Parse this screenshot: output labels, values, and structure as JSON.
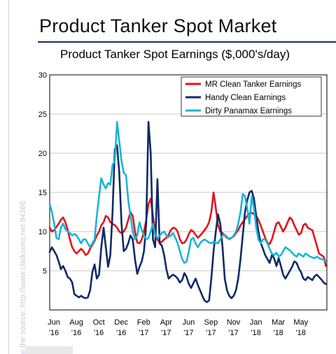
{
  "slide_title": "Product Tanker Spot Market",
  "watermark": "e the source: http://www.clarksons.net 94386",
  "chart_data": {
    "type": "line",
    "title": "Product Tanker Spot Earnings ($,000's/day)",
    "xlabel": "",
    "ylabel": "",
    "ylim": [
      0,
      30
    ],
    "yticks": [
      "30",
      "25",
      "20",
      "15",
      "10",
      "5"
    ],
    "ytick_values": [
      30,
      25,
      20,
      15,
      10,
      5
    ],
    "xlim": [
      0,
      24.7
    ],
    "xticks": [
      {
        "month": "Jun",
        "year": "'16",
        "pos": 0
      },
      {
        "month": "Aug",
        "year": "'16",
        "pos": 2
      },
      {
        "month": "Oct",
        "year": "'16",
        "pos": 4
      },
      {
        "month": "Dec",
        "year": "'16",
        "pos": 6
      },
      {
        "month": "Feb",
        "year": "'17",
        "pos": 8
      },
      {
        "month": "Apr",
        "year": "'17",
        "pos": 10
      },
      {
        "month": "Jun",
        "year": "'17",
        "pos": 12
      },
      {
        "month": "Sep",
        "year": "'17",
        "pos": 14
      },
      {
        "month": "Nov",
        "year": "'17",
        "pos": 16
      },
      {
        "month": "Jan",
        "year": "'18",
        "pos": 18
      },
      {
        "month": "Mar",
        "year": "'18",
        "pos": 20
      },
      {
        "month": "May",
        "year": "'18",
        "pos": 22
      }
    ],
    "grid": true,
    "legend_position": "top-right",
    "series": [
      {
        "name": "MR Clean Tanker Earnings",
        "color": "#e3131b",
        "x": [
          0,
          0.2,
          0.4,
          0.6,
          0.8,
          1.0,
          1.2,
          1.4,
          1.6,
          1.8,
          2.0,
          2.2,
          2.4,
          2.6,
          2.8,
          3.0,
          3.2,
          3.4,
          3.6,
          3.8,
          4.0,
          4.2,
          4.4,
          4.6,
          4.8,
          5.0,
          5.2,
          5.4,
          5.6,
          5.8,
          6.0,
          6.2,
          6.4,
          6.6,
          6.8,
          7.0,
          7.2,
          7.4,
          7.6,
          7.8,
          8.0,
          8.2,
          8.4,
          8.6,
          8.8,
          9.0,
          9.2,
          9.4,
          9.6,
          9.8,
          10.0,
          10.2,
          10.4,
          10.6,
          10.8,
          11.0,
          11.2,
          11.4,
          11.6,
          11.8,
          12.0,
          12.2,
          12.4,
          12.6,
          12.8,
          13.0,
          13.2,
          13.4,
          13.6,
          13.8,
          14.0,
          14.2,
          14.4,
          14.6,
          14.8,
          15.0,
          15.2,
          15.4,
          15.6,
          15.8,
          16.0,
          16.2,
          16.4,
          16.6,
          16.8,
          17.0,
          17.2,
          17.4,
          17.6,
          17.8,
          18.0,
          18.2,
          18.4,
          18.6,
          18.8,
          19.0,
          19.2,
          19.4,
          19.6,
          19.8,
          20.0,
          20.2,
          20.4,
          20.6,
          20.8,
          21.0,
          21.2,
          21.4,
          21.6,
          21.8,
          22.0,
          22.2,
          22.4,
          22.6,
          22.8,
          23.0,
          23.2,
          23.4,
          23.6,
          23.8,
          24.0,
          24.2,
          24.4
        ],
        "values": [
          10.5,
          10.0,
          10.2,
          10.6,
          11.0,
          11.5,
          11.8,
          11.2,
          10.2,
          9.0,
          8.0,
          7.5,
          7.2,
          7.5,
          7.8,
          7.5,
          7.0,
          7.2,
          7.8,
          8.3,
          8.8,
          9.5,
          10.0,
          10.8,
          11.2,
          12.0,
          11.8,
          11.2,
          11.0,
          10.8,
          10.5,
          10.0,
          9.8,
          10.0,
          10.5,
          11.5,
          12.5,
          12.0,
          10.0,
          8.6,
          8.5,
          9.0,
          10.0,
          11.5,
          13.5,
          14.2,
          12.0,
          9.8,
          9.0,
          8.6,
          8.7,
          9.0,
          9.2,
          9.6,
          10.2,
          10.5,
          10.4,
          10.0,
          9.0,
          8.5,
          8.6,
          9.0,
          9.7,
          10.2,
          10.0,
          9.6,
          9.2,
          9.5,
          9.8,
          10.2,
          10.6,
          11.2,
          12.5,
          15.0,
          13.0,
          10.8,
          10.0,
          9.8,
          9.5,
          9.2,
          9.1,
          9.2,
          9.4,
          9.8,
          10.2,
          10.8,
          11.2,
          11.6,
          12.0,
          12.3,
          12.4,
          12.2,
          12.0,
          11.5,
          10.8,
          10.0,
          9.2,
          8.6,
          8.4,
          9.0,
          10.0,
          11.0,
          11.2,
          10.6,
          10.0,
          10.5,
          11.2,
          11.8,
          11.5,
          10.8,
          10.2,
          9.6,
          9.8,
          10.8,
          11.0,
          10.5,
          10.3,
          10.2,
          9.2,
          8.2,
          7.2,
          7.0,
          6.8
        ],
        "tail": [
          [
            24.5,
            6.4
          ],
          [
            24.6,
            5.6
          ]
        ]
      },
      {
        "name": "Handy Clean Earnings",
        "color": "#0f2a66",
        "x": [
          0,
          0.2,
          0.4,
          0.6,
          0.8,
          1.0,
          1.2,
          1.4,
          1.6,
          1.8,
          2.0,
          2.2,
          2.4,
          2.6,
          2.8,
          3.0,
          3.2,
          3.4,
          3.6,
          3.8,
          4.0,
          4.2,
          4.4,
          4.6,
          4.8,
          5.0,
          5.2,
          5.4,
          5.6,
          5.8,
          6.0,
          6.2,
          6.4,
          6.6,
          6.8,
          7.0,
          7.2,
          7.4,
          7.6,
          7.8,
          8.0,
          8.2,
          8.4,
          8.6,
          8.8,
          9.0,
          9.2,
          9.4,
          9.6,
          9.8,
          10.0,
          10.2,
          10.4,
          10.6,
          10.8,
          11.0,
          11.2,
          11.4,
          11.6,
          11.8,
          12.0,
          12.2,
          12.4,
          12.6,
          12.8,
          13.0,
          13.2,
          13.4,
          13.6,
          13.8,
          14.0,
          14.2,
          14.4,
          14.6,
          14.8,
          15.0,
          15.2,
          15.4,
          15.6,
          15.8,
          16.0,
          16.2,
          16.4,
          16.6,
          16.8,
          17.0,
          17.2,
          17.4,
          17.6,
          17.8,
          18.0,
          18.2,
          18.4,
          18.6,
          18.8,
          19.0,
          19.2,
          19.4,
          19.6,
          19.8,
          20.0,
          20.2,
          20.4,
          20.6,
          20.8,
          21.0,
          21.2,
          21.4,
          21.6,
          21.8,
          22.0,
          22.2,
          22.4,
          22.6,
          22.8,
          23.0,
          23.2,
          23.4,
          23.6,
          23.8,
          24.0,
          24.2,
          24.4,
          24.6
        ],
        "values": [
          7.4,
          8.0,
          7.5,
          7.0,
          6.2,
          5.2,
          5.6,
          5.0,
          4.2,
          4.0,
          3.5,
          2.0,
          1.8,
          1.6,
          1.8,
          1.6,
          1.5,
          1.6,
          2.5,
          4.8,
          5.8,
          4.0,
          4.5,
          8.0,
          10.5,
          8.0,
          5.5,
          7.0,
          12.5,
          20.5,
          21.0,
          17.5,
          11.0,
          7.5,
          7.8,
          8.5,
          9.5,
          9.0,
          6.5,
          4.6,
          5.5,
          6.2,
          7.5,
          11.0,
          24.0,
          20.0,
          9.0,
          8.0,
          16.7,
          8.5,
          8.2,
          7.0,
          5.2,
          4.0,
          4.3,
          4.5,
          4.3,
          4.0,
          3.5,
          3.8,
          4.7,
          4.2,
          3.3,
          2.8,
          3.4,
          4.0,
          3.2,
          2.5,
          1.8,
          1.2,
          1.0,
          1.2,
          4.0,
          7.5,
          10.0,
          12.2,
          11.0,
          8.0,
          4.0,
          2.5,
          1.8,
          1.5,
          1.8,
          2.5,
          4.0,
          6.5,
          9.5,
          12.5,
          14.0,
          15.0,
          15.2,
          14.2,
          12.0,
          10.0,
          8.6,
          7.8,
          7.0,
          6.5,
          6.0,
          7.0,
          6.6,
          5.6,
          6.6,
          5.6,
          4.5,
          4.0,
          4.5,
          5.0,
          5.5,
          6.2,
          6.0,
          5.3,
          4.8,
          4.0,
          3.8,
          4.2,
          4.0,
          3.8,
          4.3,
          4.5,
          4.2,
          3.9,
          3.5,
          3.3
        ]
      },
      {
        "name": "Dirty Panamax Earnings",
        "color": "#1ab4d7",
        "x": [
          0,
          0.2,
          0.4,
          0.6,
          0.8,
          1.0,
          1.2,
          1.4,
          1.6,
          1.8,
          2.0,
          2.2,
          2.4,
          2.6,
          2.8,
          3.0,
          3.2,
          3.4,
          3.6,
          3.8,
          4.0,
          4.2,
          4.4,
          4.6,
          4.8,
          5.0,
          5.2,
          5.4,
          5.6,
          5.8,
          6.0,
          6.2,
          6.4,
          6.6,
          6.8,
          7.0,
          7.2,
          7.4,
          7.6,
          7.8,
          8.0,
          8.2,
          8.4,
          8.6,
          8.8,
          9.0,
          9.2,
          9.4,
          9.6,
          9.8,
          10.0,
          10.2,
          10.4,
          10.6,
          10.8,
          11.0,
          11.2,
          11.4,
          11.6,
          11.8,
          12.0,
          12.2,
          12.4,
          12.6,
          12.8,
          13.0,
          13.2,
          13.4,
          13.6,
          13.8,
          14.0,
          14.2,
          14.4,
          14.6,
          14.8,
          15.0,
          15.2,
          15.4,
          15.6,
          15.8,
          16.0,
          16.2,
          16.4,
          16.6,
          16.8,
          17.0,
          17.2,
          17.4,
          17.6,
          17.8,
          18.0,
          18.2,
          18.4,
          18.6,
          18.8,
          19.0,
          19.2,
          19.4,
          19.6,
          19.8,
          20.0,
          20.2,
          20.4,
          20.6,
          20.8,
          21.0,
          21.2,
          21.4,
          21.6,
          21.8,
          22.0,
          22.2,
          22.4,
          22.6,
          22.8,
          23.0,
          23.2,
          23.4,
          23.6,
          23.8,
          24.0,
          24.2,
          24.4,
          24.6
        ],
        "values": [
          13.5,
          12.5,
          11.0,
          9.2,
          9.0,
          10.5,
          11.0,
          10.3,
          10.0,
          9.8,
          9.5,
          9.7,
          9.5,
          9.0,
          8.5,
          9.0,
          9.0,
          8.5,
          8.0,
          8.5,
          9.0,
          12.0,
          14.5,
          16.8,
          16.0,
          15.5,
          16.2,
          16.0,
          18.5,
          19.0,
          24.0,
          21.5,
          19.0,
          17.5,
          17.2,
          14.0,
          12.0,
          10.0,
          9.0,
          9.5,
          11.2,
          10.2,
          9.5,
          9.0,
          9.2,
          10.0,
          11.0,
          9.5,
          9.2,
          9.5,
          9.8,
          10.0,
          9.5,
          9.3,
          9.5,
          9.8,
          9.2,
          8.5,
          7.5,
          6.5,
          6.0,
          6.2,
          7.5,
          9.0,
          9.2,
          8.5,
          8.0,
          8.5,
          8.8,
          9.0,
          8.8,
          8.6,
          8.5,
          8.7,
          8.6,
          8.5,
          9.0,
          9.5,
          9.6,
          9.3,
          9.0,
          9.2,
          9.5,
          10.0,
          11.0,
          12.5,
          14.8,
          14.5,
          13.0,
          11.0,
          14.5,
          13.0,
          10.5,
          9.0,
          8.5,
          9.0,
          9.0,
          8.5,
          7.8,
          7.2,
          7.0,
          7.3,
          6.8,
          7.0,
          7.5,
          8.0,
          7.8,
          7.6,
          7.3,
          7.0,
          6.8,
          7.2,
          7.0,
          6.8,
          7.2,
          7.0,
          6.8,
          6.7,
          6.6,
          6.8,
          6.6,
          6.5,
          6.4,
          6.3
        ]
      }
    ]
  }
}
